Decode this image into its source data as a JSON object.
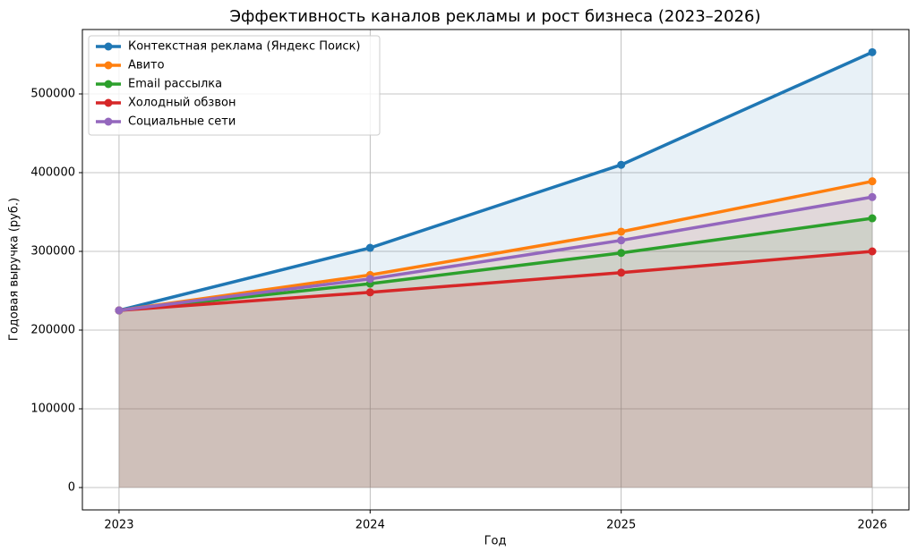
{
  "chart_data": {
    "type": "line",
    "title": "Эффективность каналов рекламы и рост бизнеса (2023–2026)",
    "x_label": "Год",
    "y_label": "Годовая выручка (руб.)",
    "x": [
      2023,
      2024,
      2025,
      2026
    ],
    "series": [
      {
        "name": "Контекстная реклама (Яндекс Поиск)",
        "color": "#1f77b4",
        "values": [
          225000,
          304500,
          410000,
          553000
        ]
      },
      {
        "name": "Авито",
        "color": "#ff7f0e",
        "values": [
          225000,
          270000,
          325000,
          389000
        ]
      },
      {
        "name": "Email рассылка",
        "color": "#2ca02c",
        "values": [
          225000,
          259000,
          298000,
          342000
        ]
      },
      {
        "name": "Холодный обзвон",
        "color": "#d62728",
        "values": [
          225000,
          248000,
          273000,
          300000
        ]
      },
      {
        "name": "Социальные сети",
        "color": "#9467bd",
        "values": [
          225000,
          265000,
          314000,
          369000
        ]
      }
    ],
    "xlim": [
      2022.854,
      2026.146
    ],
    "xticks": [
      2023,
      2024,
      2025,
      2026
    ],
    "ylim": [
      -28400,
      581800
    ],
    "yticks": [
      0,
      100000,
      200000,
      300000,
      400000,
      500000
    ],
    "grid": true,
    "fill": true,
    "legend": "upper left"
  }
}
